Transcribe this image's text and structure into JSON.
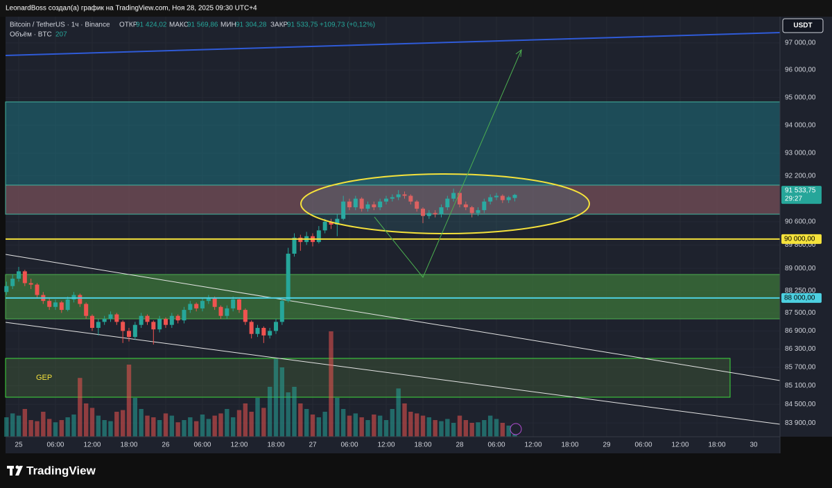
{
  "header": {
    "author_line": "LeonardBoss создал(а) график на TradingView.com, Ноя 28, 2025 09:30 UTC+4",
    "symbol": "Bitcoin / TetherUS · 1ч · Binance",
    "open_label": "ОТКР",
    "open_value": "91 424,02",
    "high_label": "МАКС",
    "high_value": "91 569,86",
    "low_label": "МИН",
    "low_value": "91 304,28",
    "close_label": "ЗАКР",
    "close_value": "91 533,75",
    "change": "+109,73 (+0,12%)",
    "volume_label": "Объём · BTC",
    "volume_value": "207",
    "currency": "USDT"
  },
  "footer": {
    "brand": "TradingView"
  },
  "chart_data": {
    "type": "candlestick",
    "log_scale": true,
    "grid": true,
    "up_color": "#26a69a",
    "down_color": "#ef5350",
    "xlim": [
      -2.15,
      124.3
    ],
    "ylim": [
      83460,
      98030
    ],
    "volume_lim": [
      0,
      2000
    ],
    "xticks": [
      {
        "value": 0,
        "label": "25"
      },
      {
        "value": 6,
        "label": "06:00"
      },
      {
        "value": 12,
        "label": "12:00"
      },
      {
        "value": 18,
        "label": "18:00"
      },
      {
        "value": 24,
        "label": "26"
      },
      {
        "value": 30,
        "label": "06:00"
      },
      {
        "value": 36,
        "label": "12:00"
      },
      {
        "value": 42,
        "label": "18:00"
      },
      {
        "value": 48,
        "label": "27"
      },
      {
        "value": 54,
        "label": "06:00"
      },
      {
        "value": 60,
        "label": "12:00"
      },
      {
        "value": 66,
        "label": "18:00"
      },
      {
        "value": 72,
        "label": "28"
      },
      {
        "value": 78,
        "label": "06:00"
      },
      {
        "value": 84,
        "label": "12:00"
      },
      {
        "value": 90,
        "label": "18:00"
      },
      {
        "value": 96,
        "label": "29"
      },
      {
        "value": 102,
        "label": "06:00"
      },
      {
        "value": 108,
        "label": "12:00"
      },
      {
        "value": 114,
        "label": "18:00"
      },
      {
        "value": 120,
        "label": "30"
      }
    ],
    "yticks": [
      {
        "value": 97000,
        "label": "97 000,00"
      },
      {
        "value": 96000,
        "label": "96 000,00"
      },
      {
        "value": 95000,
        "label": "95 000,00"
      },
      {
        "value": 94000,
        "label": "94 000,00"
      },
      {
        "value": 93000,
        "label": "93 000,00"
      },
      {
        "value": 92200,
        "label": "92 200,00"
      },
      {
        "value": 90600,
        "label": "90 600,00"
      },
      {
        "value": 89800,
        "label": "89 800,00"
      },
      {
        "value": 89000,
        "label": "89 000,00"
      },
      {
        "value": 88250,
        "label": "88 250,00"
      },
      {
        "value": 87500,
        "label": "87 500,00"
      },
      {
        "value": 86900,
        "label": "86 900,00"
      },
      {
        "value": 86300,
        "label": "86 300,00"
      },
      {
        "value": 85700,
        "label": "85 700,00"
      },
      {
        "value": 85100,
        "label": "85 100,00"
      },
      {
        "value": 84500,
        "label": "84 500,00"
      },
      {
        "value": 83900,
        "label": "83 900,00"
      }
    ],
    "x": [
      -2,
      -1,
      0,
      1,
      2,
      3,
      4,
      5,
      6,
      7,
      8,
      9,
      10,
      11,
      12,
      13,
      14,
      15,
      16,
      17,
      18,
      19,
      20,
      21,
      22,
      23,
      24,
      25,
      26,
      27,
      28,
      29,
      30,
      31,
      32,
      33,
      34,
      35,
      36,
      37,
      38,
      39,
      40,
      41,
      42,
      43,
      44,
      45,
      46,
      47,
      48,
      49,
      50,
      51,
      52,
      53,
      54,
      55,
      56,
      57,
      58,
      59,
      60,
      61,
      62,
      63,
      64,
      65,
      66,
      67,
      68,
      69,
      70,
      71,
      72,
      73,
      74,
      75,
      76,
      77,
      78,
      79,
      80,
      81
    ],
    "open": [
      88200,
      88400,
      88650,
      88900,
      88500,
      88450,
      88100,
      87900,
      87700,
      87850,
      87600,
      87950,
      88100,
      87800,
      87400,
      87000,
      87200,
      87300,
      87450,
      87200,
      86900,
      86700,
      87100,
      87400,
      87200,
      86950,
      87300,
      87100,
      87400,
      87250,
      87600,
      87800,
      87650,
      87900,
      88000,
      87700,
      87400,
      87650,
      87950,
      87600,
      87200,
      86800,
      87000,
      86750,
      86900,
      87200,
      87900,
      89500,
      90050,
      89900,
      90100,
      89900,
      90300,
      90600,
      90500,
      90700,
      91300,
      91100,
      91400,
      91050,
      91200,
      91100,
      91300,
      91400,
      91450,
      91550,
      91500,
      91300,
      91050,
      90800,
      90900,
      90850,
      91100,
      91400,
      91600,
      91200,
      91100,
      90900,
      91000,
      91300,
      91450,
      91500,
      91350,
      91424.02
    ],
    "high": [
      88550,
      88800,
      89050,
      88950,
      88650,
      88500,
      88200,
      88000,
      87950,
      87900,
      88050,
      88200,
      88150,
      87850,
      87450,
      87300,
      87400,
      87550,
      87500,
      87250,
      87000,
      87200,
      87500,
      87450,
      87250,
      87400,
      87350,
      87500,
      87450,
      87700,
      87900,
      87850,
      88000,
      88100,
      88050,
      87750,
      87750,
      88050,
      88000,
      87650,
      87250,
      87100,
      87050,
      87000,
      87300,
      88000,
      89700,
      90200,
      90150,
      90250,
      90200,
      90450,
      90700,
      90700,
      90850,
      91500,
      91400,
      91500,
      91450,
      91300,
      91300,
      91400,
      91500,
      91550,
      91700,
      91650,
      91550,
      91350,
      91100,
      91000,
      91000,
      91200,
      91500,
      91750,
      91650,
      91300,
      91150,
      91100,
      91400,
      91550,
      91600,
      91550,
      91500,
      91569.86
    ],
    "low": [
      88100,
      88300,
      88550,
      88400,
      88300,
      88000,
      87800,
      87600,
      87600,
      87500,
      87550,
      87850,
      87700,
      87300,
      86900,
      86750,
      87100,
      87200,
      87100,
      86500,
      86550,
      86600,
      87000,
      87100,
      86450,
      86850,
      87000,
      87000,
      87150,
      87150,
      87500,
      87550,
      87550,
      87800,
      87600,
      87300,
      87300,
      87550,
      87500,
      87100,
      86650,
      86700,
      86500,
      86650,
      86800,
      87100,
      87850,
      89400,
      89600,
      89800,
      89750,
      89850,
      90200,
      90350,
      90100,
      90650,
      91000,
      91000,
      90950,
      90950,
      91000,
      91000,
      91200,
      91300,
      91350,
      91400,
      91200,
      90950,
      90550,
      90700,
      90750,
      90750,
      91000,
      91300,
      91100,
      91000,
      90750,
      90800,
      90900,
      91200,
      91350,
      91250,
      91250,
      91304.28
    ],
    "close": [
      88400,
      88650,
      88900,
      88500,
      88450,
      88100,
      87900,
      87700,
      87850,
      87600,
      87950,
      88100,
      87800,
      87400,
      87000,
      87200,
      87300,
      87450,
      87200,
      86900,
      86700,
      87100,
      87400,
      87200,
      86950,
      87300,
      87100,
      87400,
      87250,
      87600,
      87800,
      87650,
      87900,
      88000,
      87700,
      87400,
      87650,
      87950,
      87600,
      87200,
      86800,
      87000,
      86750,
      86900,
      87200,
      87900,
      89500,
      90050,
      89900,
      90100,
      89900,
      90300,
      90600,
      90500,
      90700,
      91300,
      91100,
      91400,
      91050,
      91200,
      91100,
      91300,
      91400,
      91450,
      91550,
      91500,
      91300,
      91050,
      90800,
      90900,
      90850,
      91100,
      91400,
      91600,
      91200,
      91100,
      90900,
      91000,
      91300,
      91450,
      91500,
      91350,
      91450,
      91533.75
    ],
    "volume": [
      350,
      420,
      380,
      500,
      300,
      280,
      450,
      320,
      260,
      300,
      350,
      400,
      1060,
      600,
      520,
      380,
      300,
      280,
      450,
      480,
      1300,
      700,
      500,
      380,
      350,
      300,
      420,
      380,
      260,
      300,
      350,
      280,
      400,
      320,
      380,
      420,
      500,
      350,
      480,
      600,
      450,
      700,
      520,
      900,
      1400,
      1250,
      800,
      900,
      600,
      500,
      400,
      350,
      450,
      1900,
      700,
      500,
      380,
      420,
      350,
      300,
      400,
      380,
      300,
      500,
      870,
      600,
      450,
      420,
      380,
      350,
      300,
      280,
      320,
      250,
      380,
      300,
      250,
      260,
      300,
      380,
      320,
      250,
      200,
      207
    ],
    "price_lines": [
      {
        "value": 90000,
        "label": "90 000,00",
        "color": "#f5e23b"
      },
      {
        "value": 88000,
        "label": "88 000,00",
        "color": "#4dd0e1"
      }
    ],
    "last_price": {
      "label": "91 533,75",
      "timer": "29:27",
      "color": "#26a69a"
    },
    "annotations": [
      {
        "text": "GEP"
      }
    ]
  }
}
